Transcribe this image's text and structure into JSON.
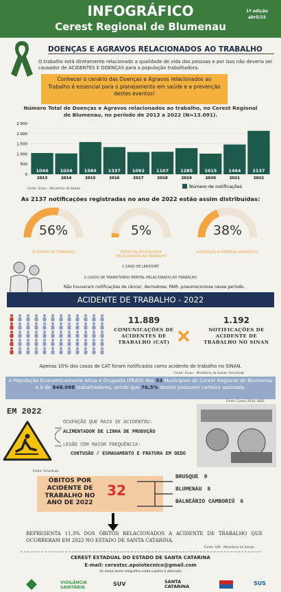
{
  "header": {
    "title": "INFOGRÁFICO",
    "subtitle": "Cerest Regional de Blumenau",
    "edition": "1ª edição",
    "date": "abril/23"
  },
  "intro": {
    "title": "DOENÇAS E AGRAVOS RELACIONADOS AO TRABALHO",
    "text": "O trabalho está diretamente relacionado a qualidade de vida das pessoas e por isso não deveria ser causador de ACIDENTES E DOENÇAS para a população trabalhadora.",
    "highlight": "Conhecer o cenário das Doenças e Agravos relacionados ao Trabalho é essencial para o planejamento em saúde e a prevenção destes eventos!"
  },
  "chart_data": [
    {
      "type": "bar",
      "title": "Número Total de Doenças e Agravos relacionados ao trabalho, no Cerest Regional de Blumenau, no período de 2013 a 2022 (N=13.091).",
      "categories": [
        "2013",
        "2014",
        "2015",
        "2016",
        "2017",
        "2018",
        "2019",
        "2020",
        "2021",
        "2022"
      ],
      "series": [
        {
          "name": "Número de notificações",
          "color": "#1d5a4b",
          "values": [
            1046,
            1024,
            1584,
            1337,
            1092,
            1107,
            1285,
            1015,
            1464,
            2137
          ]
        }
      ],
      "ylim": [
        0,
        2500
      ],
      "yticks": [
        0,
        500,
        {
          "value": 1000,
          "label": "1.000"
        },
        {
          "value": 1500,
          "label": "1.500"
        },
        {
          "value": 2000,
          "label": "2.000"
        },
        {
          "value": 2500,
          "label": "2.500"
        }
      ],
      "source": "Fonte: Sinan - Ministério da Saúde."
    },
    {
      "type": "gauge",
      "title": "As 2137 notificações registradas no ano de 2022 estão assim distribuídas:",
      "categories": [
        "ACIDENTE DE TRABALHO",
        "INTOXICAÇÃO EXÓGENA RELACIONADA AO TRABALHO",
        "EXPOSIÇÃO A MATERIAL BIOLÓGICO"
      ],
      "values": [
        56,
        5,
        38
      ],
      "value_labels": [
        "56%",
        "5%",
        "38%"
      ],
      "ylim": [
        0,
        100
      ],
      "color": "#f2a541"
    }
  ],
  "other_cases": [
    "1 CASO DE LER/DORT",
    "2 CASOS DE TRANSTORNO MENTAL RELACIONADO AO TRABALHO"
  ],
  "no_cases": "Não houveram notificações de câncer, dermatose, PAIR, pneumoconiose nesse período.",
  "accidents": {
    "banner": "ACIDENTE DE TRABALHO - 2022",
    "cat_count": "11.889",
    "cat_label": "COMUNICAÇÕES DE ACIDENTES DE TRABALHO (CAT)",
    "sinan_count": "1.192",
    "sinan_label": "NOTIFICAÇÕES DE ACIDENTE DE TRABALHO NO SINAN",
    "note": "Apenas 10% dos casos de CAT foram notificados como acidente de trabalho no SINAN.",
    "source": "Fonte: Sinan - Ministério da Saúde; SmartLab."
  },
  "population": {
    "parts": [
      "A População Economicamente Ativa e Ocupada (PEAO) dos ",
      "53",
      " Municípios do Cerest Regional de Blumenau e é de ",
      "848.098",
      " trabalhadores, sendo que ",
      "76,5%",
      " destes possuem carteira assinada."
    ],
    "source": "Fonte: Censo 2010, IBGE."
  },
  "year": {
    "title": "EM 2022",
    "occupation_label": "OCUPAÇÃO QUE MAIS SE ACIDENTOU:",
    "occupation": "ALIMENTADOR DE LINHA DE PRODUÇÃO",
    "injury_label": "LESÃO COM MAIOR FREQUÊNCIA:",
    "injury": "CONTUSÃO / ESMAGAMENTO E FRATURA EM DEDO",
    "source": "Fonte: SmartLab."
  },
  "deaths": {
    "label": "ÓBITOS POR ACIDENTE DE TRABALHO NO ANO DE 2022",
    "total": "32",
    "cities": [
      {
        "name": "BRUSQUE",
        "count": "9"
      },
      {
        "name": "BLUMENAU",
        "count": "8"
      },
      {
        "name": "BALNEÁRIO CAMBORIÚ",
        "count": "6"
      }
    ],
    "summary": "REPRESENTA 11,3% DOS ÓBITOS RELACIONADOS A ACIDENTE DE TRABALHO QUE OCORRERAM EM 2022 NO ESTADO DE SANTA CATARINA.",
    "source": "Fonte: SIM - Ministério da Saúde."
  },
  "footer": {
    "org": "CEREST ESTADUAL DO ESTADO DE SANTA CATARINA",
    "email": "E-mail: cerestsc.apoiotecnico@gmail.com",
    "disclaimer": "Os dados deste infográfico estão sujeitos à alteração",
    "logos": [
      "VIGILÂNCIA SANITÁRIA",
      "SUV",
      "SANTA CATARINA",
      "SUS"
    ]
  }
}
